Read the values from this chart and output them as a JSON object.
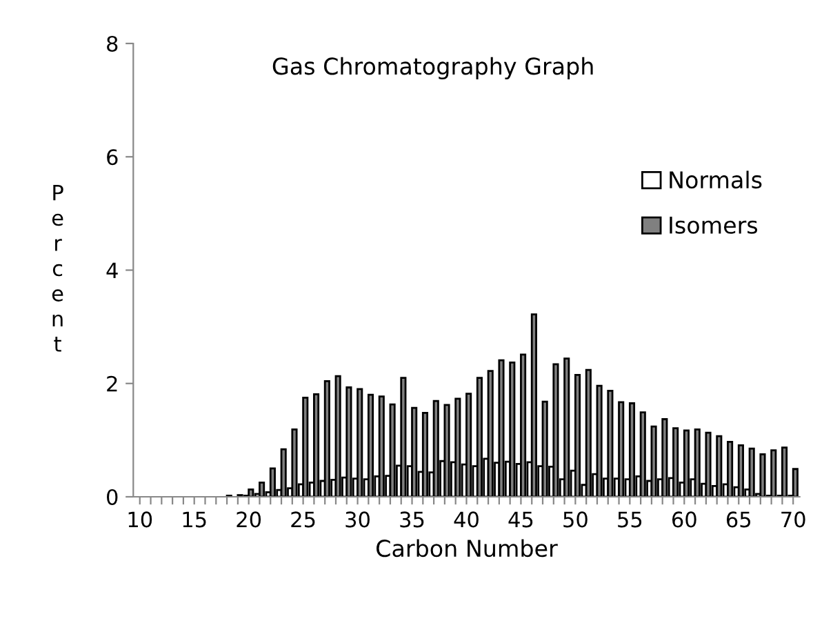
{
  "chart_data": {
    "type": "bar",
    "title": "Gas Chromatography Graph",
    "xlabel": "Carbon Number",
    "ylabel": "Percent",
    "categories": [
      "10",
      null,
      null,
      null,
      null,
      "15",
      null,
      null,
      null,
      null,
      "20",
      null,
      null,
      null,
      null,
      "25",
      null,
      null,
      null,
      null,
      "30",
      null,
      null,
      null,
      null,
      "35",
      null,
      null,
      null,
      null,
      "40",
      null,
      null,
      null,
      null,
      "45",
      null,
      null,
      null,
      null,
      "50",
      null,
      null,
      null,
      null,
      "55",
      null,
      null,
      null,
      null,
      "60",
      null,
      null,
      null,
      null,
      "65",
      null,
      null,
      null,
      null,
      "70"
    ],
    "series": [
      {
        "name": "Normals",
        "color": "#ffffff",
        "values": [
          0,
          0,
          0,
          0,
          0,
          0,
          0,
          0,
          0,
          0,
          0.02,
          0.05,
          0.08,
          0.12,
          0.15,
          0.22,
          0.25,
          0.28,
          0.3,
          0.34,
          0.32,
          0.31,
          0.36,
          0.37,
          0.55,
          0.54,
          0.44,
          0.43,
          0.63,
          0.61,
          0.57,
          0.54,
          0.67,
          0.6,
          0.62,
          0.58,
          0.61,
          0.54,
          0.53,
          0.31,
          0.46,
          0.21,
          0.4,
          0.32,
          0.32,
          0.31,
          0.36,
          0.28,
          0.31,
          0.33,
          0.25,
          0.31,
          0.23,
          0.19,
          0.22,
          0.17,
          0.13,
          0.05,
          0.02,
          0.02,
          0.02
        ]
      },
      {
        "name": "Isomers",
        "color": "#808080",
        "values": [
          0,
          0,
          0,
          0,
          0,
          0,
          0,
          0,
          0.02,
          0.03,
          0.13,
          0.25,
          0.5,
          0.84,
          1.19,
          1.75,
          1.81,
          2.04,
          2.13,
          1.93,
          1.9,
          1.8,
          1.77,
          1.63,
          2.1,
          1.57,
          1.48,
          1.69,
          1.62,
          1.73,
          1.82,
          2.1,
          2.22,
          2.41,
          2.37,
          2.51,
          3.22,
          1.68,
          2.34,
          2.44,
          2.15,
          2.24,
          1.96,
          1.87,
          1.67,
          1.65,
          1.49,
          1.24,
          1.37,
          1.21,
          1.17,
          1.19,
          1.13,
          1.07,
          0.97,
          0.91,
          0.85,
          0.75,
          0.82,
          0.87,
          0.49
        ]
      }
    ],
    "ylim": [
      0,
      8
    ],
    "yticks": [
      0,
      2,
      4,
      6,
      8
    ],
    "legend": "right",
    "grid": false
  }
}
